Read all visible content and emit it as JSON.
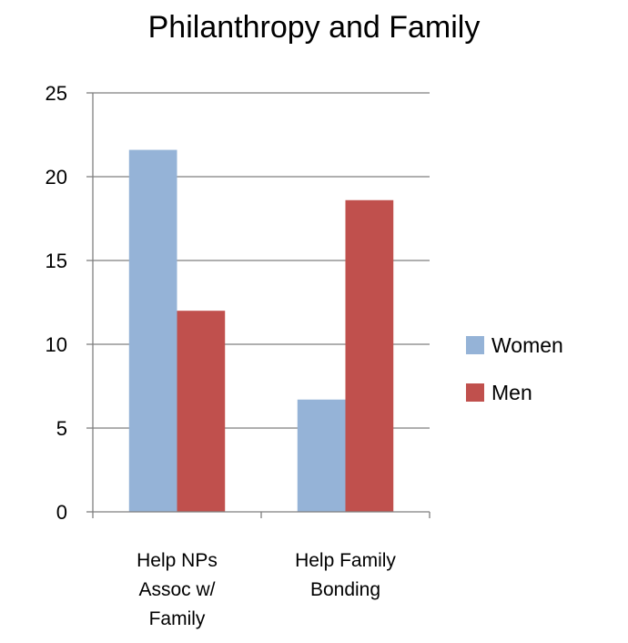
{
  "chart_data": {
    "type": "bar",
    "title": "Philanthropy and Family",
    "categories": [
      [
        "Help NPs",
        "Assoc w/",
        "Family"
      ],
      [
        "Help Family",
        "Bonding"
      ]
    ],
    "series": [
      {
        "name": "Women",
        "color": "#95b3d7",
        "values": [
          21.6,
          6.7
        ]
      },
      {
        "name": "Men",
        "color": "#c0504d",
        "values": [
          12.0,
          18.6
        ]
      }
    ],
    "y_ticks": [
      0,
      5,
      10,
      15,
      20,
      25
    ],
    "ylim": [
      0,
      25
    ],
    "grid": true,
    "legend_position": "right"
  }
}
